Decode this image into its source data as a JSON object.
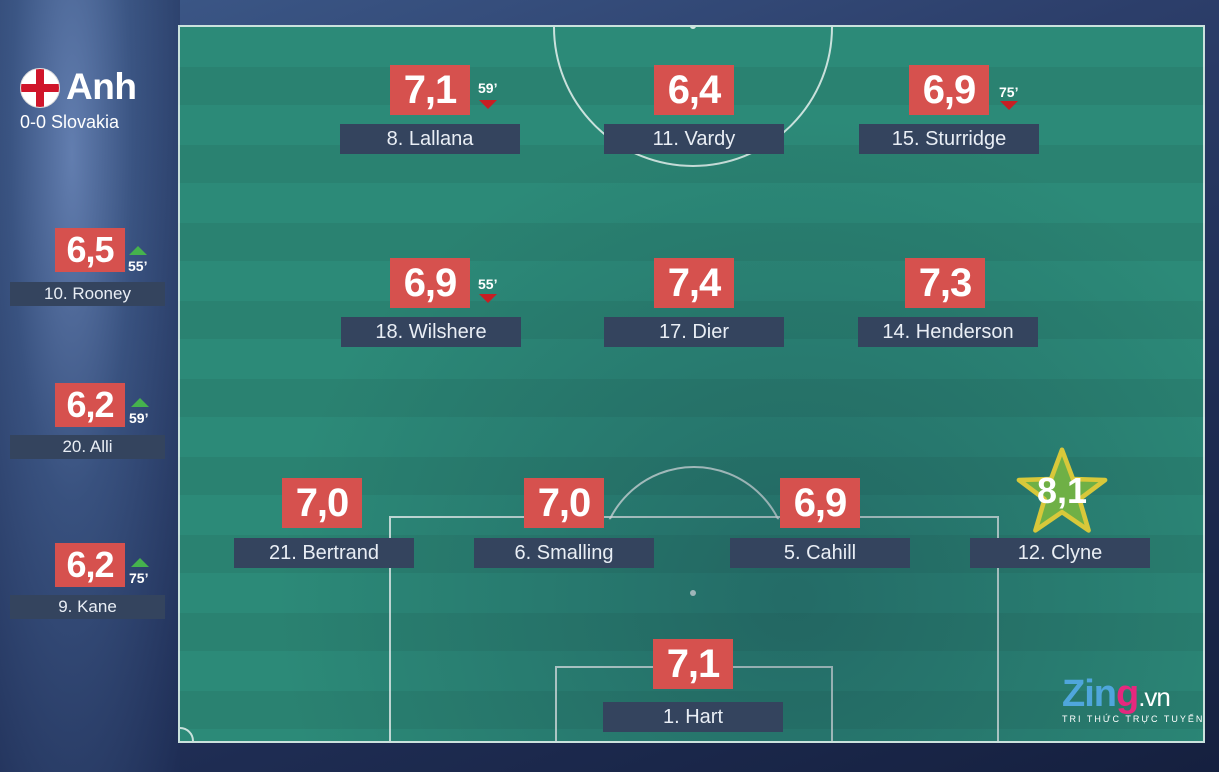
{
  "team": {
    "name": "Anh",
    "score": "0-0 Slovakia"
  },
  "colors": {
    "rating_bg": "#d6514e",
    "name_bg": "#34445e",
    "pitch": "#2c8a78",
    "sub_off": "#c81e23",
    "sub_on": "#45b24d",
    "star": "#6fb046"
  },
  "starters": [
    {
      "id": "lallana",
      "rating": "7,1",
      "name": "8. Lallana",
      "sub": "59’",
      "sub_type": "off"
    },
    {
      "id": "vardy",
      "rating": "6,4",
      "name": "11. Vardy"
    },
    {
      "id": "sturridge",
      "rating": "6,9",
      "name": "15. Sturridge",
      "sub": "75’",
      "sub_type": "off"
    },
    {
      "id": "wilshere",
      "rating": "6,9",
      "name": "18. Wilshere",
      "sub": "55’",
      "sub_type": "off"
    },
    {
      "id": "dier",
      "rating": "7,4",
      "name": "17. Dier"
    },
    {
      "id": "henderson",
      "rating": "7,3",
      "name": "14. Henderson"
    },
    {
      "id": "bertrand",
      "rating": "7,0",
      "name": "21. Bertrand"
    },
    {
      "id": "smalling",
      "rating": "7,0",
      "name": "6. Smalling"
    },
    {
      "id": "cahill",
      "rating": "6,9",
      "name": "5. Cahill"
    },
    {
      "id": "clyne",
      "rating": "8,1",
      "name": "12. Clyne",
      "best": true
    },
    {
      "id": "hart",
      "rating": "7,1",
      "name": "1. Hart"
    }
  ],
  "substitutes": [
    {
      "id": "rooney",
      "rating": "6,5",
      "name": "10. Rooney",
      "sub": "55’",
      "sub_type": "on"
    },
    {
      "id": "alli",
      "rating": "6,2",
      "name": "20. Alli",
      "sub": "59’",
      "sub_type": "on"
    },
    {
      "id": "kane",
      "rating": "6,2",
      "name": "9. Kane",
      "sub": "75’",
      "sub_type": "on"
    }
  ],
  "logo": {
    "brand_a": "Zin",
    "brand_b": "g",
    "suffix": ".vn",
    "tagline": "TRI THỨC TRỰC TUYẾN"
  }
}
